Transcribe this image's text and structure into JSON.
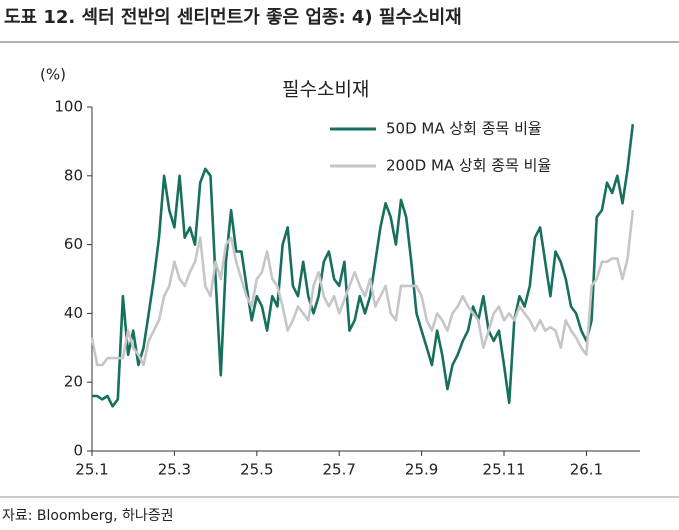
{
  "header": {
    "title": "도표 12. 섹터 전반의 센티먼트가 좋은 업종: 4) 필수소비재"
  },
  "chart_data": {
    "type": "line",
    "title": "필수소비재",
    "y_unit": "(%)",
    "x": [
      1,
      1.125,
      1.25,
      1.375,
      1.5,
      1.625,
      1.75,
      1.875,
      2,
      2.125,
      2.25,
      2.375,
      2.5,
      2.625,
      2.75,
      2.875,
      3,
      3.125,
      3.25,
      3.375,
      3.5,
      3.625,
      3.75,
      3.875,
      4,
      4.125,
      4.25,
      4.375,
      4.5,
      4.625,
      4.75,
      4.875,
      5,
      5.125,
      5.25,
      5.375,
      5.5,
      5.625,
      5.75,
      5.875,
      6,
      6.125,
      6.25,
      6.375,
      6.5,
      6.625,
      6.75,
      6.875,
      7,
      7.125,
      7.25,
      7.375,
      7.5,
      7.625,
      7.75,
      7.875,
      8,
      8.125,
      8.25,
      8.375,
      8.5,
      8.625,
      8.75,
      8.875,
      9,
      9.125,
      9.25,
      9.375,
      9.5,
      9.625,
      9.75,
      9.875,
      10,
      10.125,
      10.25,
      10.375,
      10.5,
      10.625,
      10.75,
      10.875,
      11,
      11.125,
      11.25,
      11.375,
      11.5,
      11.625,
      11.75,
      11.875,
      12,
      12.125,
      12.25,
      12.375,
      12.5,
      12.625,
      12.75,
      12.875,
      13,
      13.125,
      13.25,
      13.375,
      13.5,
      13.625,
      13.75,
      13.875,
      14,
      14.125
    ],
    "series": [
      {
        "name": "50D MA 상회 종목 비율",
        "color": "#17705d",
        "values": [
          16,
          16,
          15,
          16,
          13,
          15,
          45,
          28,
          35,
          25,
          30,
          40,
          50,
          62,
          80,
          70,
          65,
          80,
          62,
          65,
          60,
          78,
          82,
          80,
          50,
          22,
          55,
          70,
          58,
          58,
          48,
          38,
          45,
          42,
          35,
          45,
          42,
          60,
          65,
          48,
          45,
          55,
          45,
          40,
          45,
          55,
          58,
          50,
          48,
          55,
          35,
          38,
          45,
          40,
          45,
          55,
          65,
          72,
          68,
          60,
          73,
          68,
          55,
          40,
          35,
          30,
          25,
          35,
          28,
          18,
          25,
          28,
          32,
          35,
          42,
          38,
          45,
          35,
          32,
          35,
          25,
          14,
          38,
          45,
          42,
          48,
          62,
          65,
          55,
          45,
          58,
          55,
          50,
          42,
          40,
          35,
          32,
          38,
          68,
          70,
          78,
          75,
          80,
          72,
          82,
          95
        ]
      },
      {
        "name": "200D MA 상회 종목 비율",
        "color": "#c6c6c6",
        "values": [
          33,
          25,
          25,
          27,
          27,
          27,
          27,
          35,
          30,
          28,
          25,
          32,
          35,
          38,
          45,
          48,
          55,
          50,
          48,
          52,
          55,
          62,
          48,
          45,
          55,
          50,
          60,
          62,
          55,
          50,
          45,
          42,
          50,
          52,
          58,
          50,
          48,
          42,
          35,
          38,
          42,
          40,
          38,
          48,
          52,
          45,
          42,
          45,
          40,
          44,
          48,
          52,
          48,
          45,
          50,
          42,
          45,
          48,
          40,
          38,
          48,
          48,
          48,
          48,
          45,
          38,
          35,
          40,
          38,
          35,
          40,
          42,
          45,
          42,
          40,
          38,
          30,
          35,
          40,
          42,
          38,
          40,
          38,
          42,
          40,
          38,
          35,
          38,
          35,
          36,
          35,
          30,
          38,
          35,
          33,
          30,
          28,
          48,
          50,
          55,
          55,
          56,
          56,
          50,
          56,
          70
        ]
      }
    ],
    "xlim": [
      1,
      14.3
    ],
    "xticks": [
      {
        "value": 1,
        "label": "25.1"
      },
      {
        "value": 3,
        "label": "25.3"
      },
      {
        "value": 5,
        "label": "25.5"
      },
      {
        "value": 7,
        "label": "25.7"
      },
      {
        "value": 9,
        "label": "25.9"
      },
      {
        "value": 11,
        "label": "25.11"
      },
      {
        "value": 13,
        "label": "26.1"
      }
    ],
    "ylim": [
      0,
      100
    ],
    "yticks": [
      0,
      20,
      40,
      60,
      80,
      100
    ],
    "grid": false,
    "legend": "upper right"
  },
  "footer": {
    "source": "자료: Bloomberg, 하나증권"
  }
}
